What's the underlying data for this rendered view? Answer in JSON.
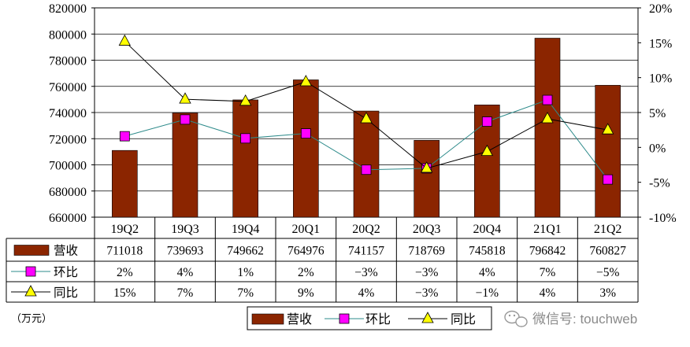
{
  "chart_data": {
    "type": "bar",
    "categories": [
      "19Q2",
      "19Q3",
      "19Q4",
      "20Q1",
      "20Q2",
      "20Q3",
      "20Q4",
      "21Q1",
      "21Q2"
    ],
    "left_axis": {
      "ylim": [
        660000,
        820000
      ],
      "step": 20000,
      "tick_labels": [
        "820000",
        "800000",
        "780000",
        "760000",
        "740000",
        "720000",
        "700000",
        "680000",
        "660000"
      ]
    },
    "right_axis": {
      "ylim": [
        -10,
        20
      ],
      "step": 5,
      "tick_labels": [
        "20%",
        "15%",
        "10%",
        "5%",
        "0%",
        "-5%",
        "-10%"
      ]
    },
    "series": [
      {
        "name": "营收",
        "kind": "bar",
        "axis": "left",
        "color": "#8B2500",
        "values": [
          711018,
          739693,
          749662,
          764976,
          741157,
          718769,
          745818,
          796842,
          760827
        ],
        "labels": [
          "711018",
          "739693",
          "749662",
          "764976",
          "741157",
          "718769",
          "745818",
          "796842",
          "760827"
        ]
      },
      {
        "name": "环比",
        "kind": "line",
        "axis": "right",
        "marker": "square",
        "color": "#FF00FF",
        "line_color": "#2E8B8B",
        "values": [
          1.6,
          4.0,
          1.3,
          2.0,
          -3.2,
          -3.0,
          3.7,
          6.8,
          -4.6
        ],
        "labels": [
          "2%",
          "4%",
          "1%",
          "2%",
          "−3%",
          "−3%",
          "4%",
          "7%",
          "−5%"
        ]
      },
      {
        "name": "同比",
        "kind": "line",
        "axis": "right",
        "marker": "triangle",
        "color": "#FFFF00",
        "line_color": "#000000",
        "values": [
          15.2,
          6.9,
          6.6,
          9.4,
          4.1,
          -3.0,
          -0.6,
          4.1,
          2.5
        ],
        "labels": [
          "15%",
          "7%",
          "7%",
          "9%",
          "4%",
          "−3%",
          "−1%",
          "4%",
          "3%"
        ]
      }
    ],
    "unit_label": "（万元）",
    "grid": true,
    "legend_position": "bottom"
  },
  "watermark": "微信号: touchweb"
}
